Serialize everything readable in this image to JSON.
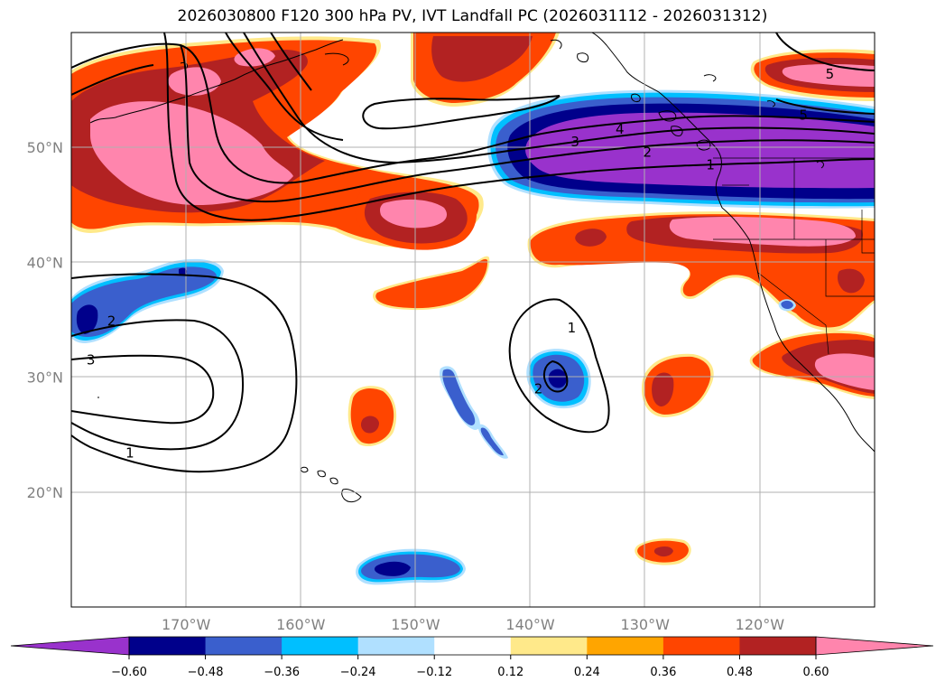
{
  "title": "2026030800 F120 300 hPa PV, IVT Landfall PC (2026031112 - 2026031312)",
  "map": {
    "latitude_labels": [
      {
        "lat": 50,
        "label": "50°N"
      },
      {
        "lat": 40,
        "label": "40°N"
      },
      {
        "lat": 30,
        "label": "30°N"
      },
      {
        "lat": 20,
        "label": "20°N"
      }
    ],
    "longitude_labels": [
      {
        "lon": -170,
        "label": "170°W"
      },
      {
        "lon": -160,
        "label": "160°W"
      },
      {
        "lon": -150,
        "label": "150°W"
      },
      {
        "lon": -140,
        "label": "140°W"
      },
      {
        "lon": -130,
        "label": "130°W"
      },
      {
        "lon": -120,
        "label": "120°W"
      }
    ],
    "extent": {
      "lon_min": -180,
      "lon_max": -110,
      "lat_min": 10,
      "lat_max": 60
    },
    "contour_labels": [
      {
        "text": "5",
        "lon": -113.9,
        "lat": 56.4
      },
      {
        "text": "5",
        "lon": -116.2,
        "lat": 52.8
      },
      {
        "text": "4",
        "lon": -132.2,
        "lat": 51.6
      },
      {
        "text": "3",
        "lon": -136.1,
        "lat": 50.5
      },
      {
        "text": "2",
        "lon": -129.8,
        "lat": 49.6
      },
      {
        "text": "1",
        "lon": -124.3,
        "lat": 48.5
      },
      {
        "text": "1",
        "lon": -136.4,
        "lat": 34.3
      },
      {
        "text": "2",
        "lon": -139.3,
        "lat": 29.0
      },
      {
        "text": "2",
        "lon": -176.5,
        "lat": 34.9
      },
      {
        "text": "3",
        "lon": -178.3,
        "lat": 31.5
      },
      {
        "text": "1",
        "lon": -174.9,
        "lat": 23.4
      }
    ],
    "colors": {
      "pink": "#ff85ad",
      "firebrick": "#b22222",
      "orangered": "#ff4500",
      "orange": "#ffa500",
      "khaki": "#ffe98a",
      "lightblue": "#b0e0ff",
      "deepskyblue": "#00bfff",
      "royalblue": "#3a5fcd",
      "darkblue": "#00008b",
      "purple": "#9932cc",
      "grid": "#b0b0b0",
      "grid_label": "#808080"
    }
  },
  "colorbar": {
    "ticks": [
      "−0.60",
      "−0.48",
      "−0.36",
      "−0.24",
      "−0.12",
      "0.12",
      "0.24",
      "0.36",
      "0.48",
      "0.60"
    ],
    "segments": [
      {
        "color": "#9932cc"
      },
      {
        "color": "#00008b"
      },
      {
        "color": "#3a5fcd"
      },
      {
        "color": "#00bfff"
      },
      {
        "color": "#b0e0ff"
      },
      {
        "color": "#ffffff"
      },
      {
        "color": "#ffe98a"
      },
      {
        "color": "#ffa500"
      },
      {
        "color": "#ff4500"
      },
      {
        "color": "#b22222"
      },
      {
        "color": "#ff85ad"
      }
    ]
  }
}
